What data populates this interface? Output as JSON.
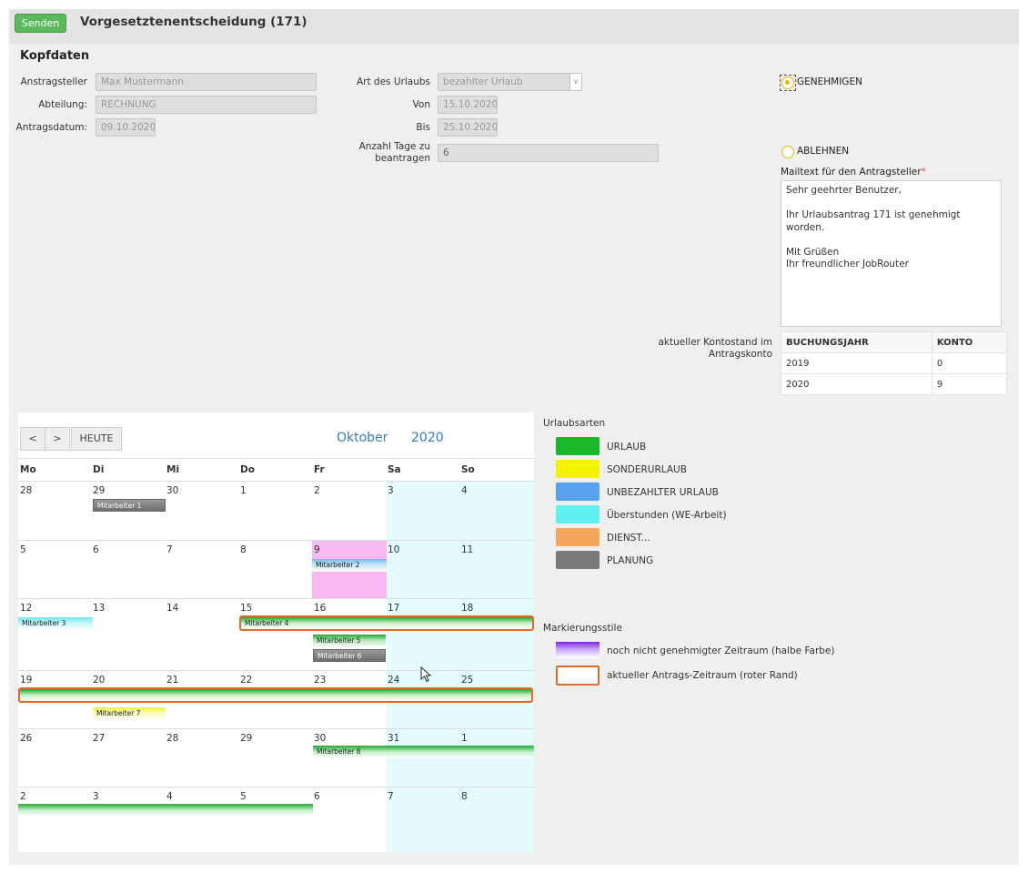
{
  "header": {
    "send_label": "Senden",
    "title": "Vorgesetztenentscheidung (171)"
  },
  "section": {
    "title": "Kopfdaten"
  },
  "form": {
    "antragsteller_label": "Anstragsteller",
    "antragsteller_value": "Max Mustermann",
    "abteilung_label": "Abteilung:",
    "abteilung_value": "RECHNUNG",
    "antragsdatum_label": "Antragsdatum:",
    "antragsdatum_value": "09.10.2020",
    "art_label": "Art des Urlaubs",
    "art_value": "bezahlter Urlaub",
    "von_label": "Von",
    "von_value": "15.10.2020",
    "bis_label": "Bis",
    "bis_value": "25.10.2020",
    "tage_label": "Anzahl Tage zu beantragen",
    "tage_value": "6"
  },
  "decision": {
    "approve_label": "GENEHMIGEN",
    "reject_label": "ABLEHNEN",
    "mail_label": "Mailtext für den Antragsteller",
    "mail_required": "*",
    "mail_text": "Sehr geehrter Benutzer,\n\nIhr Urlaubsantrag 171 ist genehmigt worden.\n\nMit Grüßen\nIhr freundlicher JobRouter"
  },
  "account": {
    "label": "aktueller Kontostand im Antragskonto",
    "headers": [
      "BUCHUNGSJAHR",
      "KONTO"
    ],
    "rows": [
      [
        "2019",
        "0"
      ],
      [
        "2020",
        "9"
      ]
    ]
  },
  "calendar": {
    "prev_label": "<",
    "next_label": ">",
    "today_label": "HEUTE",
    "month": "Oktober",
    "year": "2020",
    "daynames": [
      "Mo",
      "Di",
      "Mi",
      "Do",
      "Fr",
      "Sa",
      "So"
    ],
    "weeks": [
      [
        "28",
        "29",
        "30",
        "1",
        "2",
        "3",
        "4"
      ],
      [
        "5",
        "6",
        "7",
        "8",
        "9",
        "10",
        "11"
      ],
      [
        "12",
        "13",
        "14",
        "15",
        "16",
        "17",
        "18"
      ],
      [
        "19",
        "20",
        "21",
        "22",
        "23",
        "24",
        "25"
      ],
      [
        "26",
        "27",
        "28",
        "29",
        "30",
        "31",
        "1"
      ],
      [
        "2",
        "3",
        "4",
        "5",
        "6",
        "7",
        "8"
      ]
    ],
    "events": {
      "e1": "Mitarbeiter 1",
      "e2": "Mitarbeiter 2",
      "e3": "Mitarbeiter 3",
      "e4": "Mitarbeiter 4",
      "e5": "Mitarbeiter 5",
      "e6": "Mitarbeiter 6",
      "e7": "Mitarbeiter 7",
      "e8": "Mitarbeiter 8"
    }
  },
  "legend": {
    "title": "Urlaubsarten",
    "items": [
      {
        "label": "URLAUB",
        "color": "#19b82a"
      },
      {
        "label": "SONDERURLAUB",
        "color": "#f5f200"
      },
      {
        "label": "UNBEZAHLTER URLAUB",
        "color": "#5aa3ec"
      },
      {
        "label": "Überstunden (WE-Arbeit)",
        "color": "#5ff0f2"
      },
      {
        "label": "DIENST...",
        "color": "#f6a55c"
      },
      {
        "label": "PLANUNG",
        "color": "#7a7a7a"
      }
    ],
    "marking_title": "Markierungsstile",
    "marking_items": [
      {
        "label": "noch nicht genehmigter Zeitraum (halbe Farbe)"
      },
      {
        "label": "aktueller Antrags-Zeitraum (roter Rand)"
      }
    ]
  }
}
